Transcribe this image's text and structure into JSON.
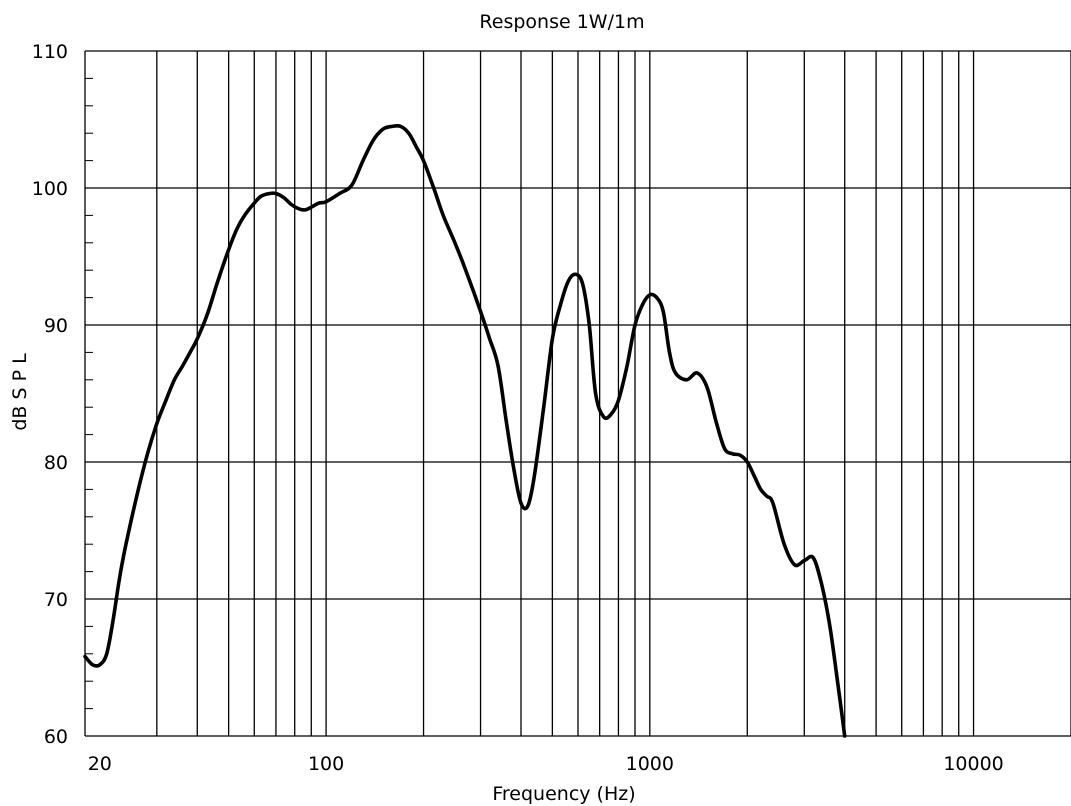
{
  "chart_data": {
    "type": "line",
    "title": "Response 1W/1m",
    "xlabel": "Frequency (Hz)",
    "ylabel": "dB S P L",
    "x_scale": "log",
    "xlim": [
      18,
      20000
    ],
    "ylim": [
      60,
      110
    ],
    "x_ticks": [
      {
        "value": 20,
        "label": "20"
      },
      {
        "value": 100,
        "label": "100"
      },
      {
        "value": 1000,
        "label": "1000"
      },
      {
        "value": 10000,
        "label": "10000"
      }
    ],
    "y_ticks": [
      {
        "value": 60,
        "label": "60"
      },
      {
        "value": 70,
        "label": "70"
      },
      {
        "value": 80,
        "label": "80"
      },
      {
        "value": 90,
        "label": "90"
      },
      {
        "value": 100,
        "label": "100"
      },
      {
        "value": 110,
        "label": "110"
      }
    ],
    "grid": true,
    "series": [
      {
        "x": [
          18,
          19,
          20,
          21,
          22,
          23,
          24,
          26,
          28,
          30,
          32,
          34,
          36,
          38,
          40,
          43,
          46,
          50,
          53,
          56,
          60,
          63,
          67,
          70,
          74,
          78,
          82,
          86,
          90,
          95,
          100,
          110,
          120,
          130,
          140,
          150,
          160,
          170,
          180,
          190,
          200,
          215,
          230,
          250,
          270,
          300,
          320,
          340,
          360,
          380,
          400,
          420,
          440,
          470,
          500,
          530,
          560,
          590,
          620,
          650,
          680,
          720,
          760,
          800,
          850,
          900,
          950,
          1000,
          1050,
          1100,
          1150,
          1200,
          1300,
          1400,
          1500,
          1600,
          1700,
          1800,
          1900,
          2000,
          2100,
          2200,
          2300,
          2400,
          2600,
          2800,
          3000,
          3200,
          3400,
          3600,
          3800,
          4000
        ],
        "y": [
          65.8,
          65.2,
          65.2,
          66.0,
          68.5,
          71.5,
          73.8,
          77.5,
          80.5,
          82.8,
          84.5,
          86.0,
          87.0,
          88.0,
          89.0,
          90.8,
          93.0,
          95.5,
          97.0,
          98.0,
          98.9,
          99.4,
          99.6,
          99.6,
          99.3,
          98.8,
          98.5,
          98.4,
          98.6,
          98.9,
          99.0,
          99.6,
          100.2,
          102.0,
          103.5,
          104.3,
          104.5,
          104.5,
          104.0,
          103.0,
          102.0,
          100.0,
          98.0,
          96.0,
          94.0,
          91.0,
          89.0,
          87.0,
          83.0,
          79.5,
          77.0,
          76.8,
          79.0,
          84.0,
          89.0,
          91.5,
          93.2,
          93.7,
          93.0,
          90.0,
          85.0,
          83.3,
          83.5,
          84.5,
          87.0,
          90.0,
          91.5,
          92.2,
          92.0,
          91.0,
          88.0,
          86.5,
          86.0,
          86.5,
          85.5,
          83.0,
          81.0,
          80.6,
          80.5,
          80.0,
          79.0,
          78.0,
          77.5,
          77.0,
          74.0,
          72.5,
          72.8,
          73.0,
          71.0,
          68.0,
          64.0,
          60.0
        ]
      }
    ]
  }
}
